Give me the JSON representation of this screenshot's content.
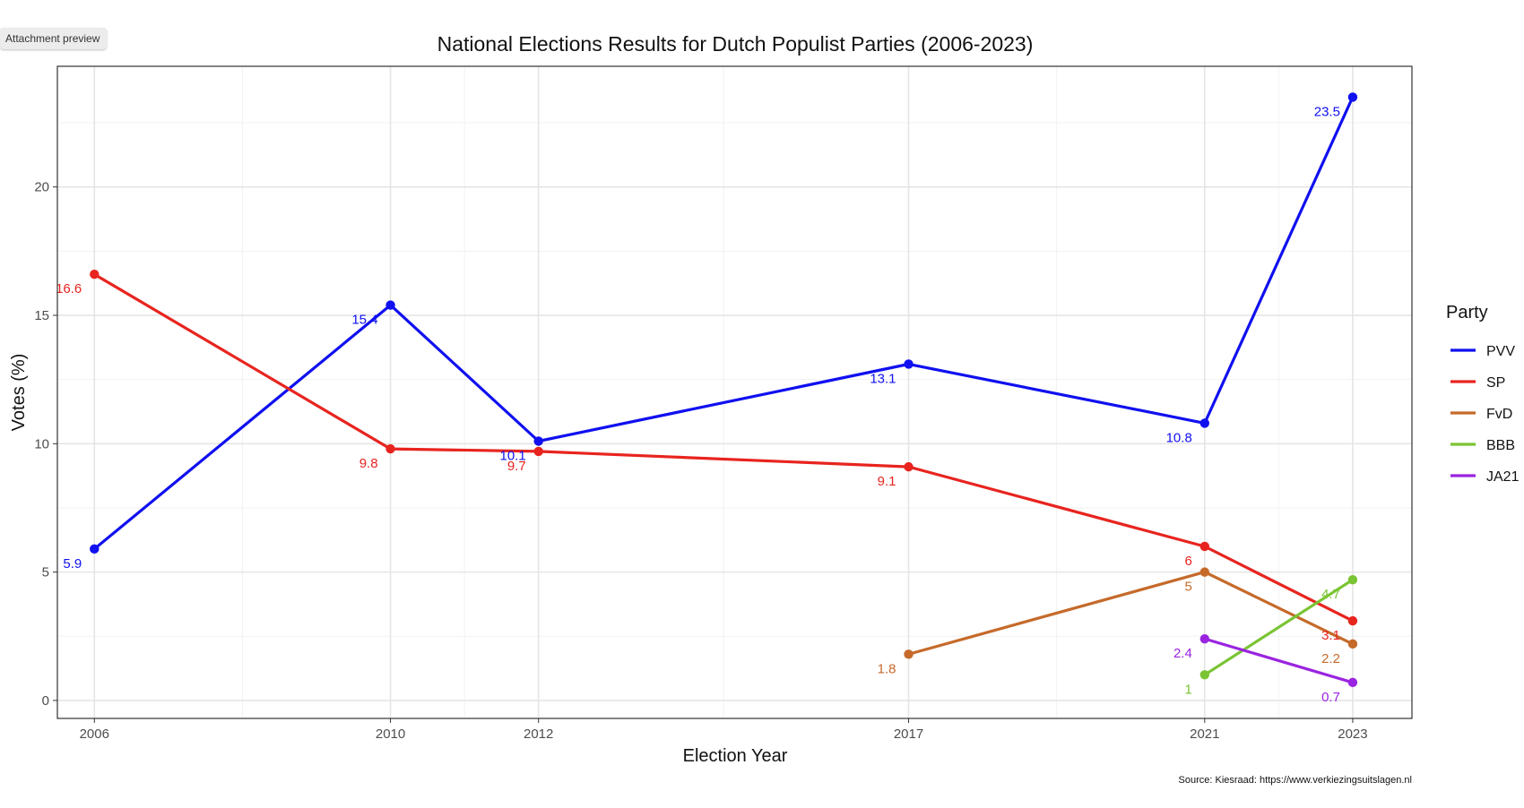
{
  "ui": {
    "preview_badge": "Attachment preview"
  },
  "chart_data": {
    "type": "line",
    "title": "National Elections Results for Dutch Populist Parties (2006-2023)",
    "xlabel": "Election Year",
    "ylabel": "Votes (%)",
    "xlim": [
      2005.5,
      2023.8
    ],
    "ylim": [
      -0.7,
      24.7
    ],
    "x_ticks": [
      2006,
      2010,
      2012,
      2017,
      2021,
      2023
    ],
    "y_ticks": [
      0,
      5,
      10,
      15,
      20
    ],
    "x_minor": [
      2008,
      2011,
      2014.5,
      2019,
      2022
    ],
    "y_minor": [
      2.5,
      7.5,
      12.5,
      17.5,
      22.5
    ],
    "grid": true,
    "legend": {
      "title": "Party",
      "position": "right"
    },
    "caption": "Source: Kiesraad: https://www.verkiezingsuitslagen.nl",
    "series": [
      {
        "name": "PVV",
        "color": "#1010f0",
        "points": [
          [
            2006,
            5.9
          ],
          [
            2010,
            15.4
          ],
          [
            2012,
            10.1
          ],
          [
            2017,
            13.1
          ],
          [
            2021,
            10.8
          ],
          [
            2023,
            23.5
          ]
        ],
        "labels": [
          "5.9",
          "15.4",
          "10.1",
          "13.1",
          "10.8",
          "23.5"
        ]
      },
      {
        "name": "SP",
        "color": "#e8241f",
        "points": [
          [
            2006,
            16.6
          ],
          [
            2010,
            9.8
          ],
          [
            2012,
            9.7
          ],
          [
            2017,
            9.1
          ],
          [
            2021,
            6.0
          ],
          [
            2023,
            3.1
          ]
        ],
        "labels": [
          "16.6",
          "9.8",
          "9.7",
          "9.1",
          "6",
          "3.1"
        ]
      },
      {
        "name": "FvD",
        "color": "#c56a2a",
        "points": [
          [
            2017,
            1.8
          ],
          [
            2021,
            5.0
          ],
          [
            2023,
            2.2
          ]
        ],
        "labels": [
          "1.8",
          "5",
          "2.2"
        ]
      },
      {
        "name": "BBB",
        "color": "#7ac433",
        "points": [
          [
            2021,
            1.0
          ],
          [
            2023,
            4.7
          ]
        ],
        "labels": [
          "1",
          "4.7"
        ]
      },
      {
        "name": "JA21",
        "color": "#9a24e0",
        "points": [
          [
            2021,
            2.4
          ],
          [
            2023,
            0.7
          ]
        ],
        "labels": [
          "2.4",
          "0.7"
        ]
      }
    ]
  }
}
